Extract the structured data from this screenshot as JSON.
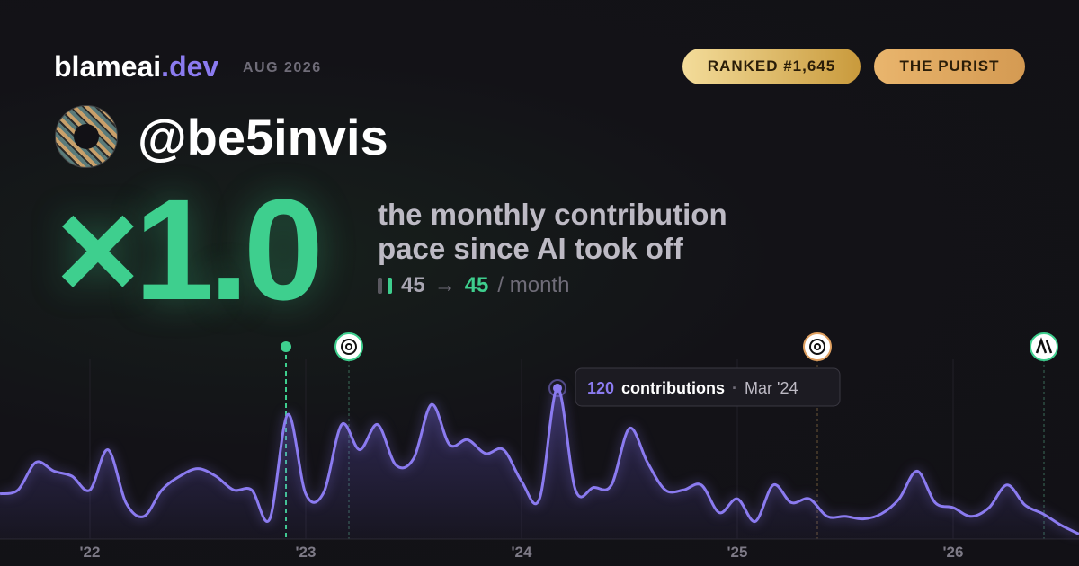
{
  "header": {
    "brand": "blameai",
    "brand_suffix": ".dev",
    "period": "AUG 2026",
    "rank": "RANKED #1,645",
    "persona": "THE PURIST"
  },
  "profile": {
    "handle": "@be5invis"
  },
  "headline": {
    "multiplier": "×1.0",
    "caption": "the monthly contribution pace since AI took off",
    "before": 45,
    "arrow": "→",
    "after": 45,
    "unit": "/ month"
  },
  "chart_data": {
    "type": "line",
    "categories": [
      null,
      null,
      null,
      null,
      null,
      "'22",
      null,
      null,
      null,
      null,
      null,
      null,
      null,
      null,
      null,
      null,
      null,
      "'23",
      null,
      null,
      null,
      null,
      null,
      null,
      null,
      null,
      null,
      null,
      null,
      "'24",
      null,
      null,
      null,
      null,
      null,
      null,
      null,
      null,
      null,
      null,
      null,
      "'25",
      null,
      null,
      null,
      null,
      null,
      null,
      null,
      null,
      null,
      null,
      null,
      "'26",
      null,
      null,
      null,
      null,
      null,
      null,
      null
    ],
    "values": [
      36,
      39,
      61,
      54,
      50,
      39,
      71,
      29,
      18,
      39,
      50,
      56,
      50,
      39,
      39,
      16,
      99,
      36,
      37,
      91,
      71,
      91,
      59,
      64,
      107,
      75,
      79,
      68,
      71,
      46,
      32,
      120,
      39,
      41,
      43,
      88,
      61,
      39,
      39,
      43,
      21,
      32,
      14,
      43,
      29,
      32,
      18,
      18,
      16,
      20,
      32,
      54,
      29,
      25,
      18,
      25,
      43,
      27,
      20,
      11,
      4
    ],
    "color": "#8b7bf0",
    "ylim": [
      0,
      150
    ],
    "tooltip": {
      "unit": "contributions",
      "separator": "·",
      "date": "Mar '24"
    }
  }
}
